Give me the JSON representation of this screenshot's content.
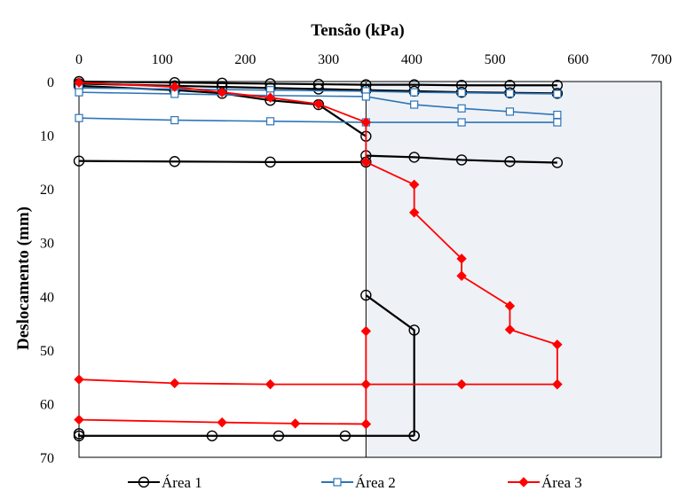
{
  "chart_data": {
    "type": "line",
    "xlabel": "Tensão (kPa)",
    "ylabel": "Deslocamento (mm)",
    "xlim": [
      0,
      700
    ],
    "ylim": [
      0,
      70
    ],
    "y_inverted": true,
    "x_axis_position": "top",
    "xticks": [
      0,
      100,
      200,
      300,
      400,
      500,
      600,
      700
    ],
    "yticks": [
      0,
      10,
      20,
      30,
      40,
      50,
      60,
      70
    ],
    "grid": false,
    "legend_position": "bottom",
    "shaded_region": {
      "x": [
        345,
        700
      ],
      "y": [
        0,
        70
      ],
      "color": "#eef2f7"
    },
    "series": [
      {
        "name": "Área 1",
        "color": "#000000",
        "marker": "circle",
        "segments": [
          [
            [
              0,
              0
            ],
            [
              115,
              0.2
            ],
            [
              172,
              0.3
            ],
            [
              230,
              0.4
            ],
            [
              288,
              0.5
            ],
            [
              345,
              0.6
            ],
            [
              403,
              0.6
            ],
            [
              460,
              0.7
            ],
            [
              518,
              0.7
            ],
            [
              575,
              0.7
            ]
          ],
          [
            [
              0,
              0.4
            ],
            [
              115,
              0.8
            ],
            [
              172,
              1.0
            ],
            [
              230,
              1.2
            ],
            [
              288,
              1.4
            ],
            [
              345,
              1.6
            ],
            [
              403,
              1.8
            ],
            [
              460,
              2.0
            ],
            [
              518,
              2.1
            ],
            [
              575,
              2.2
            ]
          ],
          [
            [
              0,
              0.8
            ],
            [
              115,
              1.6
            ],
            [
              172,
              2.2
            ],
            [
              230,
              3.5
            ],
            [
              288,
              4.3
            ],
            [
              345,
              10.2
            ]
          ],
          [
            [
              0,
              14.8
            ],
            [
              115,
              14.9
            ],
            [
              230,
              15.0
            ],
            [
              345,
              15.0
            ]
          ],
          [
            [
              345,
              13.8
            ],
            [
              403,
              14.1
            ],
            [
              460,
              14.6
            ],
            [
              518,
              14.9
            ],
            [
              575,
              15.1
            ]
          ],
          [
            [
              345,
              39.8
            ],
            [
              403,
              46.3
            ],
            [
              403,
              66.0
            ]
          ],
          [
            [
              0,
              65.6
            ],
            [
              0,
              66.0
            ],
            [
              160,
              66.0
            ],
            [
              240,
              66.0
            ],
            [
              320,
              66.0
            ],
            [
              403,
              66.0
            ]
          ]
        ]
      },
      {
        "name": "Área 2",
        "color": "#2e75b6",
        "marker": "square",
        "segments": [
          [
            [
              0,
              1.2
            ],
            [
              115,
              1.4
            ],
            [
              230,
              1.6
            ],
            [
              345,
              1.8
            ],
            [
              403,
              2.0
            ],
            [
              460,
              2.1
            ],
            [
              518,
              2.2
            ],
            [
              575,
              2.3
            ]
          ],
          [
            [
              0,
              2.0
            ],
            [
              115,
              2.3
            ],
            [
              230,
              2.6
            ],
            [
              345,
              2.8
            ],
            [
              403,
              4.3
            ],
            [
              460,
              5.0
            ],
            [
              518,
              5.6
            ],
            [
              575,
              6.2
            ]
          ],
          [
            [
              0,
              6.8
            ],
            [
              115,
              7.2
            ],
            [
              230,
              7.4
            ],
            [
              345,
              7.6
            ],
            [
              460,
              7.6
            ],
            [
              575,
              7.6
            ]
          ]
        ]
      },
      {
        "name": "Área 3",
        "color": "#ff0000",
        "marker": "diamond",
        "segments": [
          [
            [
              0,
              0.2
            ],
            [
              115,
              1.0
            ],
            [
              172,
              2.0
            ],
            [
              230,
              3.0
            ],
            [
              288,
              4.2
            ],
            [
              345,
              7.6
            ],
            [
              345,
              15.0
            ]
          ],
          [
            [
              345,
              15.0
            ],
            [
              403,
              19.2
            ],
            [
              403,
              24.4
            ],
            [
              460,
              33.0
            ],
            [
              460,
              36.2
            ],
            [
              518,
              41.8
            ],
            [
              518,
              46.2
            ],
            [
              575,
              49.0
            ],
            [
              575,
              56.4
            ]
          ],
          [
            [
              0,
              55.5
            ],
            [
              115,
              56.2
            ],
            [
              230,
              56.4
            ],
            [
              345,
              56.4
            ],
            [
              460,
              56.4
            ],
            [
              575,
              56.4
            ]
          ],
          [
            [
              345,
              46.5
            ],
            [
              345,
              63.8
            ]
          ],
          [
            [
              0,
              63.0
            ],
            [
              172,
              63.5
            ],
            [
              260,
              63.7
            ],
            [
              345,
              63.8
            ]
          ]
        ]
      }
    ]
  }
}
